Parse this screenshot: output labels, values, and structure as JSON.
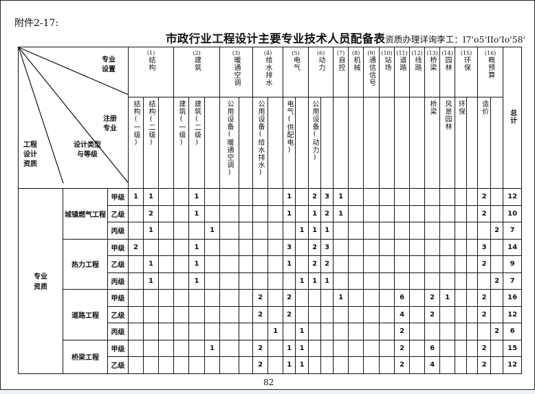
{
  "attachment_label": "附件2-17:",
  "title": "市政行业工程设计主要专业技术人员配备表",
  "title_note": "资质办理详询李工：I7'o5'IIo'Io'58'",
  "corner": {
    "specialty_setting": "专业设置",
    "registered_specialty": "注册专业",
    "qualification": "工程设计资质",
    "design_type_grade": "设计类型与等级"
  },
  "groups": [
    {
      "num": "(1)",
      "name": "结构",
      "span": 3
    },
    {
      "num": "(2)",
      "name": "建筑",
      "span": 3
    },
    {
      "num": "(3)",
      "name": "暖通空调",
      "span": 2
    },
    {
      "num": "(4)",
      "name": "给水排水",
      "span": 2
    },
    {
      "num": "(5)",
      "name": "电气",
      "span": 2
    },
    {
      "num": "(6)",
      "name": "动力",
      "span": 2
    },
    {
      "num": "(7)",
      "name": "自控",
      "span": 1
    },
    {
      "num": "(8)",
      "name": "机械",
      "span": 1
    },
    {
      "num": "(9)",
      "name": "通信信号",
      "span": 1
    },
    {
      "num": "(10)",
      "name": "站场",
      "span": 1
    },
    {
      "num": "(11)",
      "name": "道路",
      "span": 1
    },
    {
      "num": "(12)",
      "name": "线路",
      "span": 1
    },
    {
      "num": "(13)",
      "name": "桥梁",
      "span": 1
    },
    {
      "num": "(14)",
      "name": "园林",
      "span": 1
    },
    {
      "num": "(15)",
      "name": "环保",
      "span": 2
    },
    {
      "num": "(16)",
      "name": "概预算",
      "span": 2
    }
  ],
  "total_label": "总计",
  "registered": [
    "结构(一级)",
    "结构(二级)",
    "",
    "建筑(一级)",
    "建筑(二级)",
    "",
    "公用设备(暖通空调)",
    "",
    "公用设备(给水排水)",
    "",
    "电气(供配电)",
    "",
    "公用设备(动力)",
    "",
    "",
    "",
    "",
    "",
    "",
    "",
    "桥梁",
    "风景园林",
    "环保",
    "",
    "造价",
    ""
  ],
  "section_label": "专业资质",
  "categories": [
    {
      "name": "城镇燃气工程",
      "rows": [
        {
          "grade": "甲级",
          "values": [
            "1",
            "1",
            "",
            "",
            "1",
            "",
            "",
            "",
            "",
            "",
            "1",
            "",
            "2",
            "3",
            "1",
            "",
            "",
            "",
            "",
            "",
            "",
            "",
            "",
            "",
            "2",
            ""
          ],
          "total": "12"
        },
        {
          "grade": "乙级",
          "values": [
            "",
            "2",
            "",
            "",
            "1",
            "",
            "",
            "",
            "",
            "",
            "1",
            "",
            "1",
            "2",
            "1",
            "",
            "",
            "",
            "",
            "",
            "",
            "",
            "",
            "",
            "2",
            ""
          ],
          "total": "10"
        },
        {
          "grade": "丙级",
          "values": [
            "",
            "1",
            "",
            "",
            "",
            "1",
            "",
            "",
            "",
            "",
            "",
            "1",
            "1",
            "1",
            "",
            "",
            "",
            "",
            "",
            "",
            "",
            "",
            "",
            "",
            "",
            "2"
          ],
          "total": "7"
        }
      ]
    },
    {
      "name": "热力工程",
      "rows": [
        {
          "grade": "甲级",
          "values": [
            "2",
            "",
            "",
            "",
            "1",
            "",
            "",
            "",
            "",
            "",
            "3",
            "",
            "2",
            "3",
            "",
            "",
            "",
            "",
            "",
            "",
            "",
            "",
            "",
            "",
            "3",
            ""
          ],
          "total": "14"
        },
        {
          "grade": "乙级",
          "values": [
            "",
            "1",
            "",
            "",
            "1",
            "",
            "",
            "",
            "",
            "",
            "1",
            "",
            "2",
            "2",
            "",
            "",
            "",
            "",
            "",
            "",
            "",
            "",
            "",
            "",
            "2",
            ""
          ],
          "total": "9"
        },
        {
          "grade": "丙级",
          "values": [
            "",
            "1",
            "",
            "",
            "1",
            "",
            "",
            "",
            "",
            "",
            "",
            "1",
            "1",
            "1",
            "",
            "",
            "",
            "",
            "",
            "",
            "",
            "",
            "",
            "",
            "",
            "2"
          ],
          "total": "7"
        }
      ]
    },
    {
      "name": "道路工程",
      "rows": [
        {
          "grade": "甲级",
          "values": [
            "",
            "",
            "",
            "",
            "",
            "",
            "",
            "",
            "2",
            "",
            "2",
            "",
            "",
            "",
            "1",
            "",
            "",
            "",
            "6",
            "",
            "2",
            "1",
            "",
            "",
            "2",
            ""
          ],
          "total": "16"
        },
        {
          "grade": "乙级",
          "values": [
            "",
            "",
            "",
            "",
            "",
            "",
            "",
            "",
            "2",
            "",
            "2",
            "",
            "",
            "",
            "",
            "",
            "",
            "",
            "4",
            "",
            "2",
            "",
            "",
            "",
            "2",
            ""
          ],
          "total": "12"
        },
        {
          "grade": "丙级",
          "values": [
            "",
            "",
            "",
            "",
            "",
            "",
            "",
            "",
            "",
            "1",
            "",
            "1",
            "",
            "",
            "",
            "",
            "",
            "",
            "2",
            "",
            "",
            "",
            "",
            "",
            "",
            "2"
          ],
          "total": "6"
        }
      ]
    },
    {
      "name": "桥梁工程",
      "rows": [
        {
          "grade": "甲级",
          "values": [
            "",
            "",
            "",
            "",
            "",
            "1",
            "",
            "",
            "2",
            "",
            "1",
            "1",
            "",
            "",
            "",
            "",
            "",
            "",
            "2",
            "",
            "6",
            "",
            "",
            "",
            "2",
            ""
          ],
          "total": "15"
        },
        {
          "grade": "乙级",
          "values": [
            "",
            "",
            "",
            "",
            "",
            "",
            "",
            "",
            "2",
            "",
            "1",
            "1",
            "",
            "",
            "",
            "",
            "",
            "",
            "2",
            "",
            "4",
            "",
            "",
            "",
            "2",
            ""
          ],
          "total": "12"
        }
      ]
    }
  ],
  "page_number": "82"
}
